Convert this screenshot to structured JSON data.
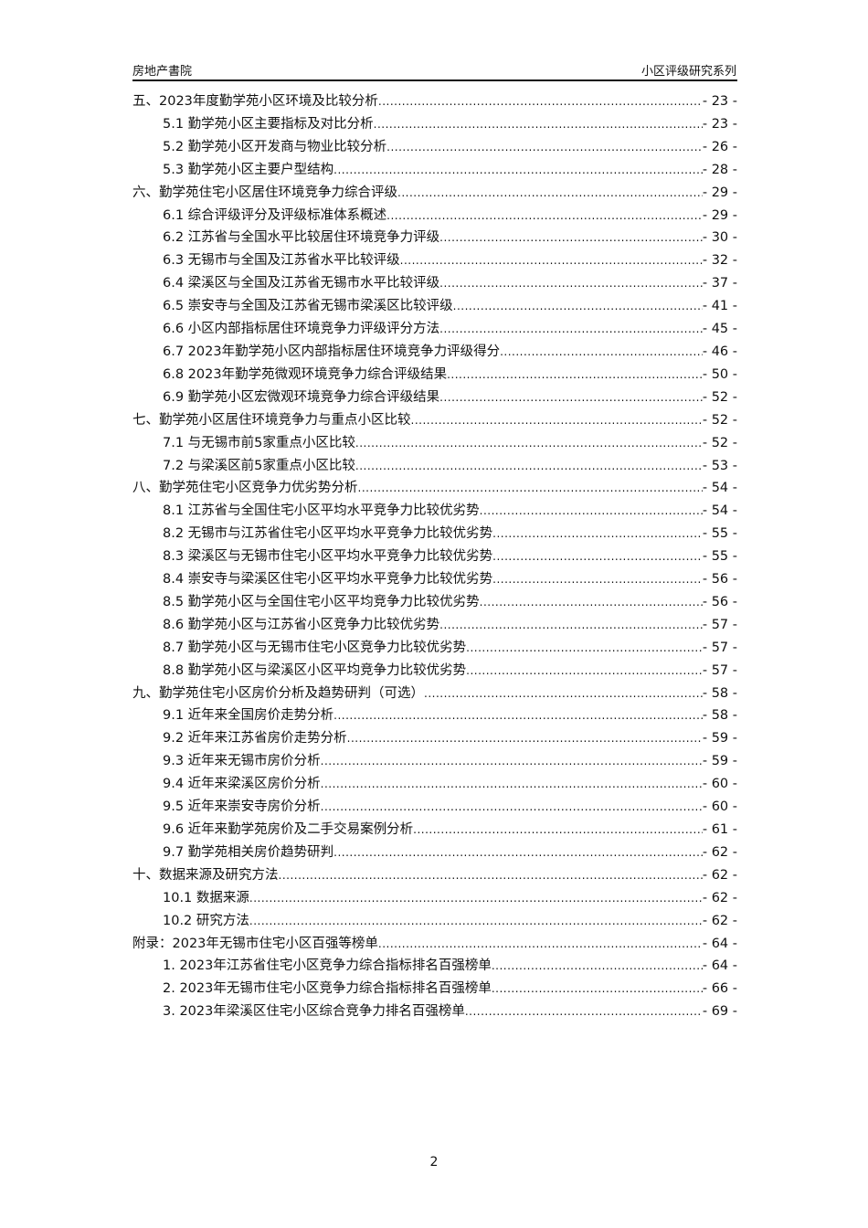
{
  "header": {
    "left": "房地产書院",
    "right": "小区评级研究系列"
  },
  "toc": [
    {
      "level": 1,
      "title": "五、2023年度勤学苑小区环境及比较分析",
      "page": "- 23 -"
    },
    {
      "level": 2,
      "title": "5.1  勤学苑小区主要指标及对比分析",
      "page": "- 23 -"
    },
    {
      "level": 2,
      "title": "5.2  勤学苑小区开发商与物业比较分析",
      "page": "- 26 -"
    },
    {
      "level": 2,
      "title": "5.3  勤学苑小区主要户型结构",
      "page": "- 28 -"
    },
    {
      "level": 1,
      "title": "六、勤学苑住宅小区居住环境竞争力综合评级",
      "page": "- 29 -"
    },
    {
      "level": 2,
      "title": "6.1  综合评级评分及评级标准体系概述",
      "page": "- 29 -"
    },
    {
      "level": 2,
      "title": "6.2  江苏省与全国水平比较居住环境竞争力评级",
      "page": "- 30 -"
    },
    {
      "level": 2,
      "title": "6.3  无锡市与全国及江苏省水平比较评级",
      "page": "- 32 -"
    },
    {
      "level": 2,
      "title": "6.4  梁溪区与全国及江苏省无锡市水平比较评级",
      "page": "- 37 -"
    },
    {
      "level": 2,
      "title": "6.5  崇安寺与全国及江苏省无锡市梁溪区比较评级",
      "page": "- 41 -"
    },
    {
      "level": 2,
      "title": "6.6  小区内部指标居住环境竞争力评级评分方法",
      "page": "- 45 -"
    },
    {
      "level": 2,
      "title": "6.7  2023年勤学苑小区内部指标居住环境竞争力评级得分",
      "page": "- 46 -"
    },
    {
      "level": 2,
      "title": "6.8  2023年勤学苑微观环境竞争力综合评级结果",
      "page": "- 50 -"
    },
    {
      "level": 2,
      "title": "6.9  勤学苑小区宏微观环境竞争力综合评级结果",
      "page": "- 52 -"
    },
    {
      "level": 1,
      "title": "七、勤学苑小区居住环境竞争力与重点小区比较",
      "page": "- 52 -"
    },
    {
      "level": 2,
      "title": "7.1  与无锡市前5家重点小区比较",
      "page": "- 52 -"
    },
    {
      "level": 2,
      "title": "7.2  与梁溪区前5家重点小区比较",
      "page": "- 53 -"
    },
    {
      "level": 1,
      "title": "八、勤学苑住宅小区竞争力优劣势分析",
      "page": "- 54 -"
    },
    {
      "level": 2,
      "title": "8.1  江苏省与全国住宅小区平均水平竞争力比较优劣势",
      "page": "- 54 -"
    },
    {
      "level": 2,
      "title": "8.2  无锡市与江苏省住宅小区平均水平竞争力比较优劣势",
      "page": "- 55 -"
    },
    {
      "level": 2,
      "title": "8.3  梁溪区与无锡市住宅小区平均水平竞争力比较优劣势",
      "page": "- 55 -"
    },
    {
      "level": 2,
      "title": "8.4  崇安寺与梁溪区住宅小区平均水平竞争力比较优劣势",
      "page": "- 56 -"
    },
    {
      "level": 2,
      "title": "8.5  勤学苑小区与全国住宅小区平均竞争力比较优劣势",
      "page": "- 56 -"
    },
    {
      "level": 2,
      "title": "8.6  勤学苑小区与江苏省小区竞争力比较优劣势",
      "page": "- 57 -"
    },
    {
      "level": 2,
      "title": "8.7  勤学苑小区与无锡市住宅小区竞争力比较优劣势",
      "page": "- 57 -"
    },
    {
      "level": 2,
      "title": "8.8  勤学苑小区与梁溪区小区平均竞争力比较优劣势",
      "page": "- 57 -"
    },
    {
      "level": 1,
      "title": "九、勤学苑住宅小区房价分析及趋势研判（可选）",
      "page": "- 58 -"
    },
    {
      "level": 2,
      "title": "9.1  近年来全国房价走势分析",
      "page": "- 58 -"
    },
    {
      "level": 2,
      "title": "9.2  近年来江苏省房价走势分析",
      "page": "- 59 -"
    },
    {
      "level": 2,
      "title": "9.3  近年来无锡市房价分析",
      "page": "- 59 -"
    },
    {
      "level": 2,
      "title": "9.4  近年来梁溪区房价分析",
      "page": "- 60 -"
    },
    {
      "level": 2,
      "title": "9.5  近年来崇安寺房价分析",
      "page": "- 60 -"
    },
    {
      "level": 2,
      "title": "9.6  近年来勤学苑房价及二手交易案例分析",
      "page": "- 61 -"
    },
    {
      "level": 2,
      "title": "9.7  勤学苑相关房价趋势研判",
      "page": "- 62 -"
    },
    {
      "level": 1,
      "title": "十、数据来源及研究方法",
      "page": "- 62 -"
    },
    {
      "level": 2,
      "title": "10.1  数据来源",
      "page": "- 62 -"
    },
    {
      "level": 2,
      "title": "10.2  研究方法",
      "page": "- 62 -"
    },
    {
      "level": 1,
      "title": "附录：2023年无锡市住宅小区百强等榜单",
      "page": "- 64 -"
    },
    {
      "level": 2,
      "title": "1.  2023年江苏省住宅小区竞争力综合指标排名百强榜单",
      "page": "- 64 -"
    },
    {
      "level": 2,
      "title": "2.  2023年无锡市住宅小区竞争力综合指标排名百强榜单",
      "page": "- 66 -"
    },
    {
      "level": 2,
      "title": "3.  2023年梁溪区住宅小区综合竞争力排名百强榜单",
      "page": "- 69 -"
    }
  ],
  "footer": {
    "page_number": "2"
  }
}
